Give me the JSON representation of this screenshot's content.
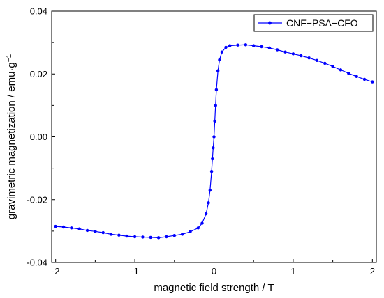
{
  "chart_data": {
    "type": "line",
    "title": "",
    "xlabel": "magnetic field strength / T",
    "ylabel": "gravimetric magnetization / emu·g",
    "ylabel_superscript": "−1",
    "xlim": [
      -2.05,
      2.05
    ],
    "ylim": [
      -0.04,
      0.04
    ],
    "xticks": [
      {
        "value": -2,
        "label": "-2"
      },
      {
        "value": -1,
        "label": "-1"
      },
      {
        "value": 0,
        "label": "0"
      },
      {
        "value": 1,
        "label": "1"
      },
      {
        "value": 2,
        "label": "2"
      }
    ],
    "yticks": [
      {
        "value": -0.04,
        "label": "-0.04"
      },
      {
        "value": -0.02,
        "label": "-0.02"
      },
      {
        "value": 0.0,
        "label": "0.00"
      },
      {
        "value": 0.02,
        "label": "0.02"
      },
      {
        "value": 0.04,
        "label": "0.04"
      }
    ],
    "grid": false,
    "legend_position": "top-right",
    "series": [
      {
        "name": "CNF−PSA−CFO",
        "color": "#0000ff",
        "marker": "circle",
        "x": [
          -2.0,
          -1.9,
          -1.8,
          -1.7,
          -1.6,
          -1.5,
          -1.4,
          -1.3,
          -1.2,
          -1.1,
          -1.0,
          -0.9,
          -0.8,
          -0.7,
          -0.6,
          -0.5,
          -0.4,
          -0.3,
          -0.2,
          -0.15,
          -0.1,
          -0.07,
          -0.05,
          -0.03,
          -0.02,
          -0.01,
          0.0,
          0.01,
          0.02,
          0.03,
          0.05,
          0.07,
          0.1,
          0.15,
          0.2,
          0.3,
          0.4,
          0.5,
          0.6,
          0.7,
          0.8,
          0.9,
          1.0,
          1.1,
          1.2,
          1.3,
          1.4,
          1.5,
          1.6,
          1.7,
          1.8,
          1.9,
          2.0
        ],
        "y": [
          -0.0285,
          -0.0287,
          -0.029,
          -0.0293,
          -0.0298,
          -0.0301,
          -0.0305,
          -0.031,
          -0.0313,
          -0.0316,
          -0.0318,
          -0.0319,
          -0.032,
          -0.0321,
          -0.0318,
          -0.0314,
          -0.031,
          -0.0302,
          -0.029,
          -0.0275,
          -0.0245,
          -0.021,
          -0.017,
          -0.011,
          -0.007,
          -0.0035,
          0.0,
          0.005,
          0.01,
          0.015,
          0.021,
          0.0245,
          0.027,
          0.0285,
          0.029,
          0.0292,
          0.0293,
          0.029,
          0.0287,
          0.0283,
          0.0277,
          0.027,
          0.0264,
          0.0258,
          0.0251,
          0.0243,
          0.0234,
          0.0224,
          0.0213,
          0.0202,
          0.0192,
          0.0183,
          0.0175
        ]
      }
    ]
  }
}
